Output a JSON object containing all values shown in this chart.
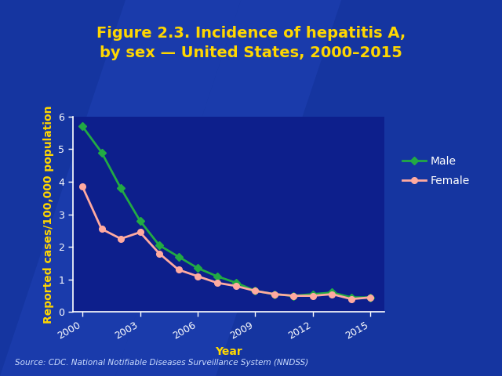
{
  "title_line1": "Figure 2.3. Incidence of hepatitis A,",
  "title_line2": "by sex — United States, 2000–2015",
  "xlabel": "Year",
  "ylabel": "Reported cases/100,000 population",
  "years": [
    2000,
    2001,
    2002,
    2003,
    2004,
    2005,
    2006,
    2007,
    2008,
    2009,
    2010,
    2011,
    2012,
    2013,
    2014,
    2015
  ],
  "male_values": [
    5.7,
    4.9,
    3.8,
    2.8,
    2.05,
    1.7,
    1.35,
    1.1,
    0.9,
    0.65,
    0.55,
    0.5,
    0.55,
    0.6,
    0.45,
    0.45
  ],
  "female_values": [
    3.85,
    2.55,
    2.25,
    2.45,
    1.8,
    1.3,
    1.1,
    0.9,
    0.8,
    0.65,
    0.55,
    0.5,
    0.5,
    0.55,
    0.4,
    0.45
  ],
  "male_color": "#22aa44",
  "female_color": "#ffaaa0",
  "title_color": "#ffd700",
  "axis_label_color": "#ffd700",
  "tick_label_color": "#ffffff",
  "legend_text_color": "#ffffff",
  "background_outer": "#1535a0",
  "background_plot": "#0d1f8c",
  "axis_color": "#ffffff",
  "source_text": "Source: CDC. National Notifiable Diseases Surveillance System (NNDSS)",
  "ylim": [
    0,
    6
  ],
  "yticks": [
    0,
    1,
    2,
    3,
    4,
    5,
    6
  ],
  "xtick_positions": [
    2000,
    2003,
    2006,
    2009,
    2012,
    2015
  ],
  "title_fontsize": 14,
  "axis_label_fontsize": 10,
  "tick_fontsize": 9,
  "legend_fontsize": 10,
  "source_fontsize": 7.5
}
